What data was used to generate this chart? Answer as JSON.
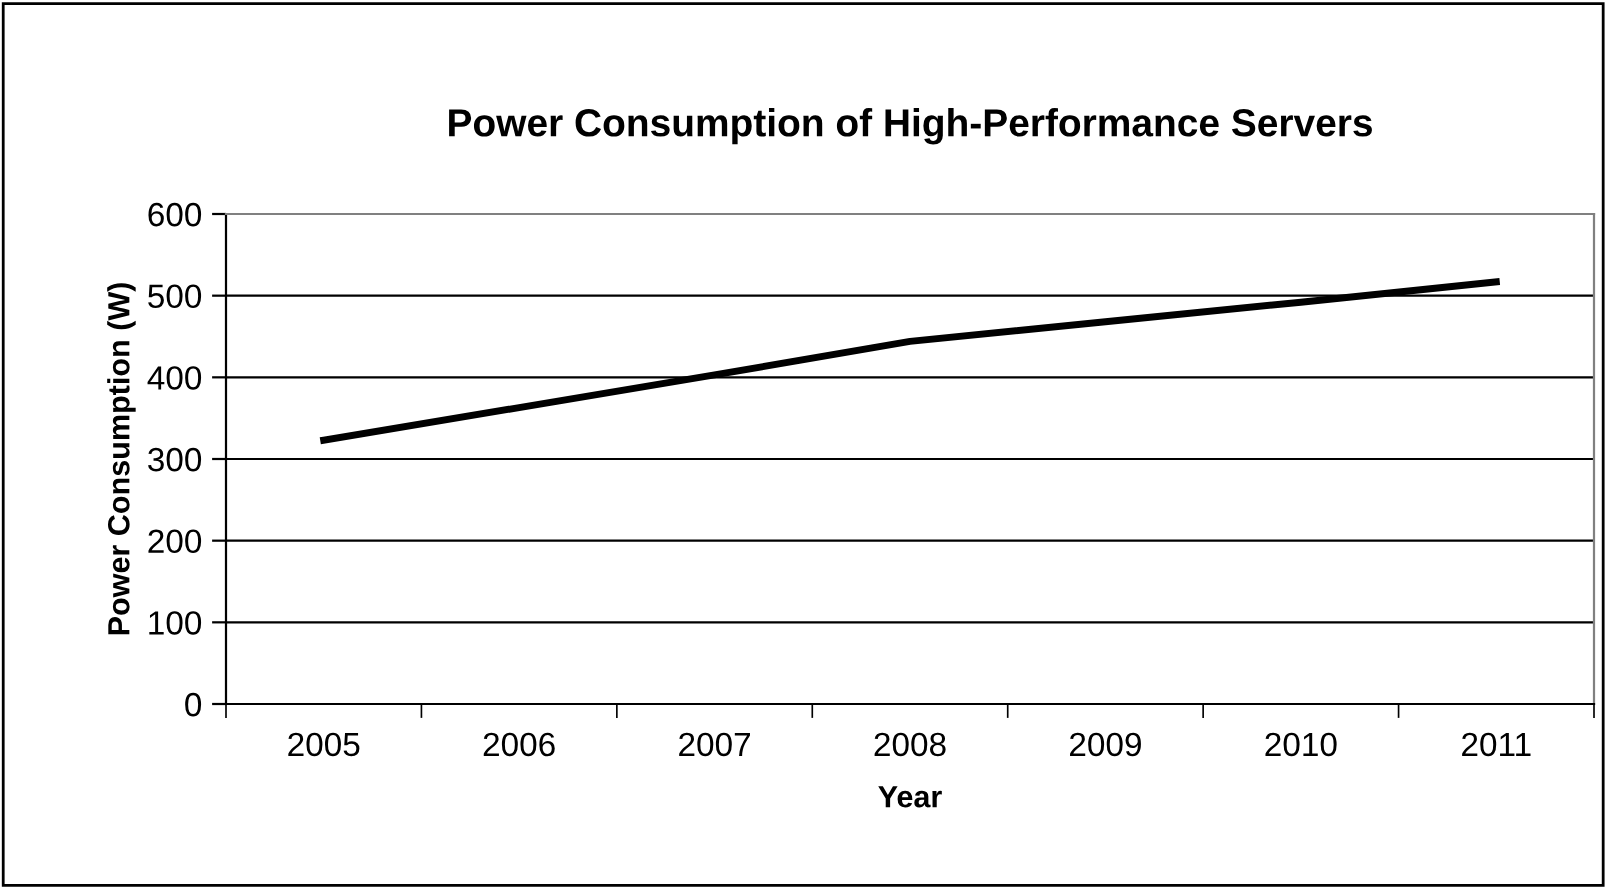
{
  "chart_data": {
    "type": "line",
    "title": "Power Consumption of High-Performance Servers",
    "xlabel": "Year",
    "ylabel": "Power Consumption (W)",
    "categories": [
      "2005",
      "2006",
      "2007",
      "2008",
      "2009",
      "2010",
      "2011"
    ],
    "series": [
      {
        "color": "#000000",
        "values": [
          323,
          363,
          403,
          444,
          468,
          492,
          517
        ]
      }
    ],
    "ylim": [
      0,
      600
    ],
    "yticks": [
      0,
      100,
      200,
      300,
      400,
      500,
      600
    ],
    "grid": "y",
    "marker": "none",
    "line_style": "solid"
  }
}
